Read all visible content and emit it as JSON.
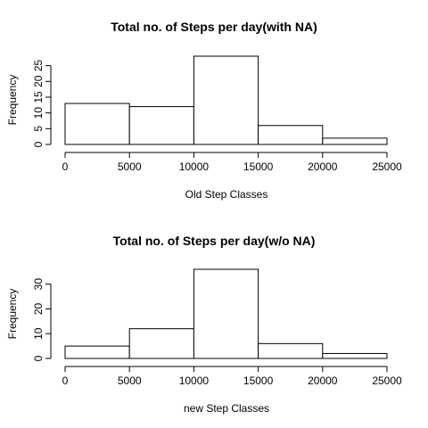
{
  "chart_data": [
    {
      "type": "bar",
      "title": "Total no. of Steps per day(with NA)",
      "xlabel": "Old Step Classes",
      "ylabel": "Frequency",
      "bins": [
        [
          0,
          5000
        ],
        [
          5000,
          10000
        ],
        [
          10000,
          15000
        ],
        [
          15000,
          20000
        ],
        [
          20000,
          25000
        ]
      ],
      "values": [
        13,
        12,
        28,
        6,
        2
      ],
      "xticks": [
        0,
        5000,
        10000,
        15000,
        20000,
        25000
      ],
      "yticks": [
        0,
        5,
        10,
        15,
        20,
        25
      ],
      "ylim": [
        0,
        28
      ],
      "grid": false
    },
    {
      "type": "bar",
      "title": "Total no. of Steps per day(w/o NA)",
      "xlabel": "new Step Classes",
      "ylabel": "Frequency",
      "bins": [
        [
          0,
          5000
        ],
        [
          5000,
          10000
        ],
        [
          10000,
          15000
        ],
        [
          15000,
          20000
        ],
        [
          20000,
          25000
        ]
      ],
      "values": [
        5,
        12,
        36,
        6,
        2
      ],
      "xticks": [
        0,
        5000,
        10000,
        15000,
        20000,
        25000
      ],
      "yticks": [
        0,
        10,
        20,
        30
      ],
      "ylim": [
        0,
        36
      ],
      "grid": false
    }
  ]
}
